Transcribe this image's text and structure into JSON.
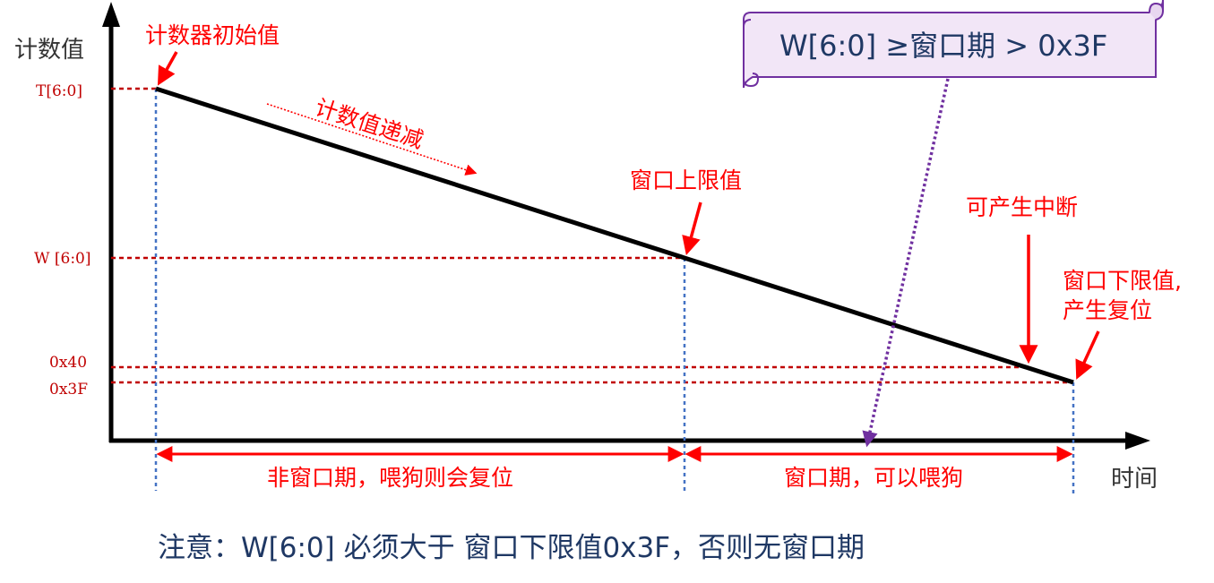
{
  "axes": {
    "y_label": "计数值",
    "x_label": "时间"
  },
  "ticks": {
    "t": "T[6:0]",
    "w": "W [6:0]",
    "h40": "0x40",
    "h3f": "0x3F"
  },
  "labels": {
    "initial_value": "计数器初始值",
    "decreasing": "计数值递减",
    "window_upper": "窗口上限值",
    "interrupt": "可产生中断",
    "window_lower_line1": "窗口下限值,",
    "window_lower_line2": "产生复位",
    "non_window_period": "非窗口期，喂狗则会复位",
    "window_period": "窗口期，可以喂狗"
  },
  "scroll": {
    "text": "W[6:0] ≥窗口期 > 0x3F"
  },
  "note": "注意：W[6:0] 必须大于 窗口下限值0x3F，否则无窗口期",
  "colors": {
    "line": "#000000",
    "annotation": "#ff0000",
    "tick_text": "#c00000",
    "guide_red": "#c00000",
    "guide_blue": "#4472c4",
    "purple": "#7030a0",
    "scroll_fill": "#f2e6f7",
    "scroll_border": "#7030a0",
    "text_navy": "#1f3864"
  }
}
